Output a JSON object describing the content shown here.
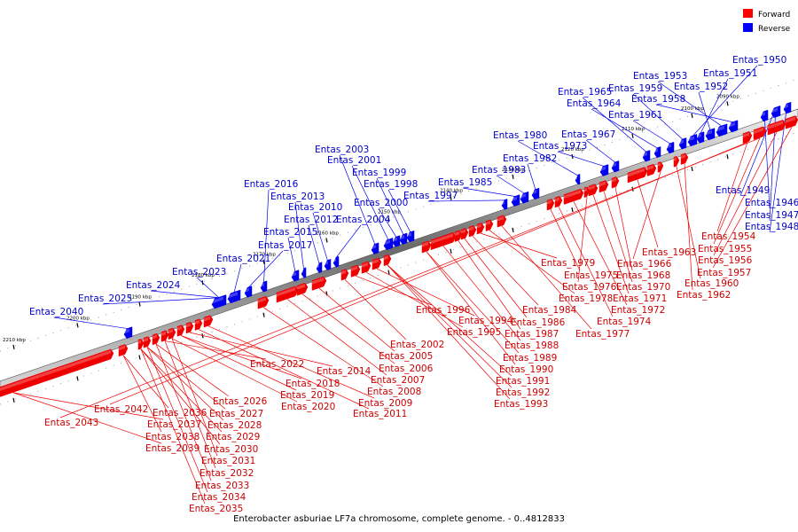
{
  "legend": [
    {
      "label": "Forward",
      "color": "#ff0000"
    },
    {
      "label": "Reverse",
      "color": "#0000ff"
    }
  ],
  "caption": "Enterobacter asburiae LF7a chromosome, complete genome. - 0..4812833",
  "ticks": [
    "2090 kbp",
    "2100 kbp",
    "2110 kbp",
    "2120 kbp",
    "2130 kbp",
    "2140 kbp",
    "2150 kbp",
    "2160 kbp",
    "2170 kbp",
    "2180 kbp",
    "2190 kbp",
    "2200 kbp",
    "2210 kbp"
  ],
  "reverse_genes": [
    "Entas_1950",
    "Entas_1951",
    "Entas_1952",
    "Entas_1953",
    "Entas_1958",
    "Entas_1959",
    "Entas_1961",
    "Entas_1964",
    "Entas_1965",
    "Entas_1967",
    "Entas_1973",
    "Entas_1980",
    "Entas_1982",
    "Entas_1983",
    "Entas_1985",
    "Entas_1997",
    "Entas_1998",
    "Entas_1999",
    "Entas_2000",
    "Entas_2001",
    "Entas_2003",
    "Entas_2004",
    "Entas_2010",
    "Entas_2012",
    "Entas_2013",
    "Entas_2015",
    "Entas_2016",
    "Entas_2017",
    "Entas_2021",
    "Entas_2023",
    "Entas_2024",
    "Entas_2025",
    "Entas_2040",
    "Entas_1949",
    "Entas_1946",
    "Entas_1947",
    "Entas_1948"
  ],
  "forward_genes": [
    "Entas_1954",
    "Entas_1955",
    "Entas_1956",
    "Entas_1957",
    "Entas_1960",
    "Entas_1962",
    "Entas_1963",
    "Entas_1966",
    "Entas_1968",
    "Entas_1970",
    "Entas_1971",
    "Entas_1972",
    "Entas_1974",
    "Entas_1975",
    "Entas_1976",
    "Entas_1977",
    "Entas_1978",
    "Entas_1979",
    "Entas_1984",
    "Entas_1986",
    "Entas_1987",
    "Entas_1988",
    "Entas_1989",
    "Entas_1990",
    "Entas_1991",
    "Entas_1992",
    "Entas_1993",
    "Entas_1994",
    "Entas_1995",
    "Entas_1996",
    "Entas_2002",
    "Entas_2005",
    "Entas_2006",
    "Entas_2007",
    "Entas_2008",
    "Entas_2009",
    "Entas_2011",
    "Entas_2014",
    "Entas_2018",
    "Entas_2019",
    "Entas_2020",
    "Entas_2022",
    "Entas_2026",
    "Entas_2027",
    "Entas_2028",
    "Entas_2029",
    "Entas_2030",
    "Entas_2031",
    "Entas_2032",
    "Entas_2033",
    "Entas_2034",
    "Entas_2035",
    "Entas_2036",
    "Entas_2037",
    "Entas_2038",
    "Entas_2039",
    "Entas_2042",
    "Entas_2043"
  ]
}
